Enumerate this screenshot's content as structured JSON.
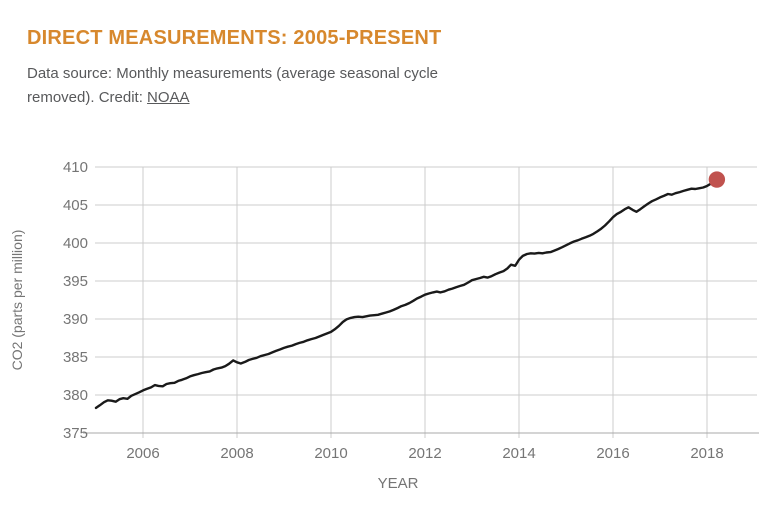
{
  "header": {
    "title": "DIRECT MEASUREMENTS: 2005-PRESENT",
    "subtitle_prefix": "Data source: Monthly measurements (average seasonal cycle removed). Credit: ",
    "subtitle_link_label": "NOAA"
  },
  "colors": {
    "title": "#d7882d",
    "subtitle": "#58595b",
    "axis_text": "#757575",
    "gridline": "#cccccc",
    "axis_line": "#a9a9a9",
    "series_line": "#1a1a1a",
    "end_dot": "#c0524e"
  },
  "chart_data": {
    "type": "line",
    "title": "DIRECT MEASUREMENTS: 2005-PRESENT",
    "xlabel": "YEAR",
    "ylabel": "CO2 (parts per million)",
    "xlim": [
      2005,
      2019.06
    ],
    "ylim": [
      375,
      410
    ],
    "x_ticks": [
      2006,
      2008,
      2010,
      2012,
      2014,
      2016,
      2018
    ],
    "y_ticks": [
      375,
      380,
      385,
      390,
      395,
      400,
      405,
      410
    ],
    "grid": true,
    "legend": "none",
    "end_marker": {
      "x": 2018.21,
      "y": 408.35
    },
    "series": [
      {
        "name": "CO2 monthly measurements, seasonal cycle removed",
        "points": [
          [
            2005.0,
            378.3
          ],
          [
            2005.08,
            378.65
          ],
          [
            2005.17,
            379.05
          ],
          [
            2005.25,
            379.3
          ],
          [
            2005.33,
            379.25
          ],
          [
            2005.42,
            379.12
          ],
          [
            2005.5,
            379.45
          ],
          [
            2005.58,
            379.58
          ],
          [
            2005.67,
            379.5
          ],
          [
            2005.75,
            379.9
          ],
          [
            2005.83,
            380.1
          ],
          [
            2005.92,
            380.35
          ],
          [
            2006.0,
            380.6
          ],
          [
            2006.08,
            380.8
          ],
          [
            2006.17,
            381.0
          ],
          [
            2006.25,
            381.3
          ],
          [
            2006.33,
            381.2
          ],
          [
            2006.42,
            381.15
          ],
          [
            2006.5,
            381.45
          ],
          [
            2006.58,
            381.55
          ],
          [
            2006.67,
            381.6
          ],
          [
            2006.75,
            381.85
          ],
          [
            2006.83,
            382.0
          ],
          [
            2006.92,
            382.2
          ],
          [
            2007.0,
            382.45
          ],
          [
            2007.08,
            382.6
          ],
          [
            2007.17,
            382.75
          ],
          [
            2007.25,
            382.9
          ],
          [
            2007.33,
            383.0
          ],
          [
            2007.42,
            383.1
          ],
          [
            2007.5,
            383.35
          ],
          [
            2007.58,
            383.5
          ],
          [
            2007.67,
            383.6
          ],
          [
            2007.75,
            383.8
          ],
          [
            2007.83,
            384.1
          ],
          [
            2007.92,
            384.55
          ],
          [
            2008.0,
            384.3
          ],
          [
            2008.08,
            384.15
          ],
          [
            2008.17,
            384.35
          ],
          [
            2008.25,
            384.6
          ],
          [
            2008.33,
            384.75
          ],
          [
            2008.42,
            384.9
          ],
          [
            2008.5,
            385.1
          ],
          [
            2008.58,
            385.25
          ],
          [
            2008.67,
            385.4
          ],
          [
            2008.75,
            385.6
          ],
          [
            2008.83,
            385.8
          ],
          [
            2008.92,
            386.0
          ],
          [
            2009.0,
            386.2
          ],
          [
            2009.08,
            386.35
          ],
          [
            2009.17,
            386.5
          ],
          [
            2009.25,
            386.7
          ],
          [
            2009.33,
            386.85
          ],
          [
            2009.42,
            387.0
          ],
          [
            2009.5,
            387.2
          ],
          [
            2009.58,
            387.35
          ],
          [
            2009.67,
            387.5
          ],
          [
            2009.75,
            387.7
          ],
          [
            2009.83,
            387.9
          ],
          [
            2009.92,
            388.1
          ],
          [
            2010.0,
            388.3
          ],
          [
            2010.08,
            388.65
          ],
          [
            2010.17,
            389.1
          ],
          [
            2010.25,
            389.6
          ],
          [
            2010.33,
            389.95
          ],
          [
            2010.42,
            390.15
          ],
          [
            2010.5,
            390.25
          ],
          [
            2010.58,
            390.3
          ],
          [
            2010.67,
            390.25
          ],
          [
            2010.75,
            390.35
          ],
          [
            2010.83,
            390.45
          ],
          [
            2010.92,
            390.5
          ],
          [
            2011.0,
            390.55
          ],
          [
            2011.08,
            390.7
          ],
          [
            2011.17,
            390.85
          ],
          [
            2011.25,
            391.0
          ],
          [
            2011.33,
            391.2
          ],
          [
            2011.42,
            391.45
          ],
          [
            2011.5,
            391.7
          ],
          [
            2011.58,
            391.85
          ],
          [
            2011.67,
            392.1
          ],
          [
            2011.75,
            392.4
          ],
          [
            2011.83,
            392.7
          ],
          [
            2011.92,
            392.95
          ],
          [
            2012.0,
            393.2
          ],
          [
            2012.08,
            393.35
          ],
          [
            2012.17,
            393.5
          ],
          [
            2012.25,
            393.6
          ],
          [
            2012.33,
            393.5
          ],
          [
            2012.42,
            393.65
          ],
          [
            2012.5,
            393.85
          ],
          [
            2012.58,
            394.0
          ],
          [
            2012.67,
            394.2
          ],
          [
            2012.75,
            394.35
          ],
          [
            2012.83,
            394.5
          ],
          [
            2012.92,
            394.8
          ],
          [
            2013.0,
            395.1
          ],
          [
            2013.08,
            395.25
          ],
          [
            2013.17,
            395.4
          ],
          [
            2013.25,
            395.55
          ],
          [
            2013.33,
            395.45
          ],
          [
            2013.42,
            395.65
          ],
          [
            2013.5,
            395.9
          ],
          [
            2013.58,
            396.1
          ],
          [
            2013.67,
            396.3
          ],
          [
            2013.75,
            396.65
          ],
          [
            2013.83,
            397.15
          ],
          [
            2013.92,
            397.0
          ],
          [
            2014.0,
            397.8
          ],
          [
            2014.08,
            398.3
          ],
          [
            2014.17,
            398.55
          ],
          [
            2014.25,
            398.65
          ],
          [
            2014.33,
            398.6
          ],
          [
            2014.42,
            398.7
          ],
          [
            2014.5,
            398.65
          ],
          [
            2014.58,
            398.75
          ],
          [
            2014.67,
            398.8
          ],
          [
            2014.75,
            399.0
          ],
          [
            2014.83,
            399.2
          ],
          [
            2014.92,
            399.45
          ],
          [
            2015.0,
            399.7
          ],
          [
            2015.08,
            399.95
          ],
          [
            2015.17,
            400.2
          ],
          [
            2015.25,
            400.35
          ],
          [
            2015.33,
            400.55
          ],
          [
            2015.42,
            400.75
          ],
          [
            2015.5,
            400.95
          ],
          [
            2015.58,
            401.2
          ],
          [
            2015.67,
            401.55
          ],
          [
            2015.75,
            401.9
          ],
          [
            2015.83,
            402.3
          ],
          [
            2015.92,
            402.85
          ],
          [
            2016.0,
            403.4
          ],
          [
            2016.08,
            403.8
          ],
          [
            2016.17,
            404.1
          ],
          [
            2016.25,
            404.45
          ],
          [
            2016.33,
            404.7
          ],
          [
            2016.42,
            404.35
          ],
          [
            2016.5,
            404.1
          ],
          [
            2016.58,
            404.45
          ],
          [
            2016.67,
            404.85
          ],
          [
            2016.75,
            405.2
          ],
          [
            2016.83,
            405.5
          ],
          [
            2016.92,
            405.75
          ],
          [
            2017.0,
            406.0
          ],
          [
            2017.08,
            406.2
          ],
          [
            2017.17,
            406.45
          ],
          [
            2017.25,
            406.35
          ],
          [
            2017.33,
            406.55
          ],
          [
            2017.42,
            406.7
          ],
          [
            2017.5,
            406.85
          ],
          [
            2017.58,
            407.0
          ],
          [
            2017.67,
            407.15
          ],
          [
            2017.75,
            407.1
          ],
          [
            2017.83,
            407.2
          ],
          [
            2017.92,
            407.3
          ],
          [
            2018.0,
            407.5
          ],
          [
            2018.08,
            407.8
          ],
          [
            2018.17,
            408.1
          ],
          [
            2018.21,
            408.35
          ]
        ]
      }
    ]
  }
}
